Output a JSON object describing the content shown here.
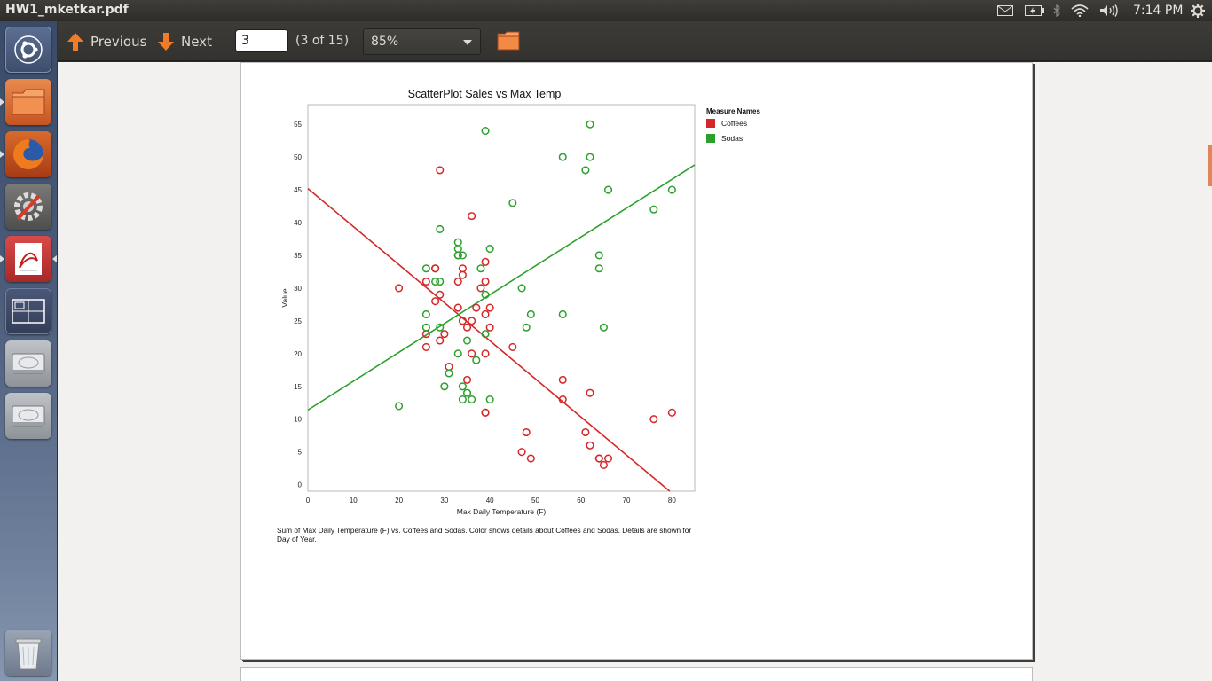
{
  "window": {
    "title": "HW1_mketkar.pdf"
  },
  "panel": {
    "clock": "7:14 PM",
    "tray_icons": [
      "mail-icon",
      "battery-icon",
      "bluetooth-icon",
      "wifi-icon",
      "volume-icon",
      "gear-icon"
    ]
  },
  "launcher": {
    "items": [
      "ubuntu-dash-icon",
      "files-icon",
      "firefox-icon",
      "system-settings-icon",
      "document-viewer-icon",
      "workspace-switcher-icon",
      "drive-icon",
      "drive-icon",
      "trash-icon"
    ]
  },
  "toolbar": {
    "previous_label": "Previous",
    "next_label": "Next",
    "page_value": "3",
    "page_count": "(3 of 15)",
    "zoom_value": "85%"
  },
  "colors": {
    "coffees": "#d62728",
    "sodas": "#2ca02c"
  },
  "document": {
    "caption": "Sum of Max Daily Temperature (F) vs. Coffees and Sodas.  Color shows details about Coffees and Sodas. Details are shown for Day of Year."
  },
  "chart_data": {
    "type": "scatter",
    "title": "ScatterPlot Sales vs Max Temp",
    "xlabel": "Max Daily Temperature (F)",
    "ylabel": "Value",
    "xlim": [
      0,
      85
    ],
    "ylim": [
      -1,
      58
    ],
    "xticks": [
      0,
      10,
      20,
      30,
      40,
      50,
      60,
      70,
      80
    ],
    "yticks": [
      0,
      5,
      10,
      15,
      20,
      25,
      30,
      35,
      40,
      45,
      50,
      55
    ],
    "legend": {
      "title": "Measure Names",
      "position": "right"
    },
    "series": [
      {
        "name": "Coffees",
        "points": [
          [
            20,
            30
          ],
          [
            26,
            31
          ],
          [
            26,
            21
          ],
          [
            26,
            23
          ],
          [
            28,
            33
          ],
          [
            28,
            33
          ],
          [
            28,
            28
          ],
          [
            29,
            48
          ],
          [
            29,
            29
          ],
          [
            29,
            22
          ],
          [
            30,
            23
          ],
          [
            31,
            18
          ],
          [
            33,
            35
          ],
          [
            33,
            31
          ],
          [
            33,
            27
          ],
          [
            34,
            33
          ],
          [
            34,
            32
          ],
          [
            34,
            25
          ],
          [
            35,
            24
          ],
          [
            35,
            16
          ],
          [
            36,
            41
          ],
          [
            36,
            25
          ],
          [
            36,
            20
          ],
          [
            37,
            27
          ],
          [
            38,
            30
          ],
          [
            39,
            34
          ],
          [
            39,
            31
          ],
          [
            39,
            26
          ],
          [
            39,
            20
          ],
          [
            39,
            11
          ],
          [
            39,
            11
          ],
          [
            40,
            27
          ],
          [
            40,
            24
          ],
          [
            45,
            21
          ],
          [
            47,
            5
          ],
          [
            48,
            8
          ],
          [
            49,
            4
          ],
          [
            56,
            16
          ],
          [
            56,
            13
          ],
          [
            61,
            8
          ],
          [
            62,
            14
          ],
          [
            62,
            6
          ],
          [
            64,
            4
          ],
          [
            64,
            4
          ],
          [
            65,
            3
          ],
          [
            66,
            4
          ],
          [
            76,
            10
          ],
          [
            80,
            11
          ]
        ],
        "trend": [
          [
            0,
            45.2
          ],
          [
            79.5,
            -1
          ]
        ]
      },
      {
        "name": "Sodas",
        "points": [
          [
            20,
            12
          ],
          [
            26,
            33
          ],
          [
            26,
            26
          ],
          [
            26,
            24
          ],
          [
            28,
            31
          ],
          [
            29,
            31
          ],
          [
            29,
            39
          ],
          [
            29,
            24
          ],
          [
            30,
            15
          ],
          [
            31,
            17
          ],
          [
            33,
            37
          ],
          [
            33,
            36
          ],
          [
            33,
            35
          ],
          [
            33,
            20
          ],
          [
            34,
            35
          ],
          [
            34,
            15
          ],
          [
            34,
            13
          ],
          [
            35,
            22
          ],
          [
            35,
            14
          ],
          [
            36,
            13
          ],
          [
            37,
            19
          ],
          [
            38,
            33
          ],
          [
            39,
            54
          ],
          [
            39,
            29
          ],
          [
            39,
            23
          ],
          [
            40,
            36
          ],
          [
            40,
            13
          ],
          [
            45,
            43
          ],
          [
            47,
            30
          ],
          [
            48,
            24
          ],
          [
            49,
            26
          ],
          [
            56,
            50
          ],
          [
            56,
            26
          ],
          [
            61,
            48
          ],
          [
            62,
            55
          ],
          [
            62,
            50
          ],
          [
            64,
            35
          ],
          [
            64,
            33
          ],
          [
            65,
            24
          ],
          [
            66,
            45
          ],
          [
            76,
            42
          ],
          [
            80,
            45
          ]
        ],
        "trend": [
          [
            0,
            11.4
          ],
          [
            85,
            48.8
          ]
        ]
      }
    ]
  }
}
